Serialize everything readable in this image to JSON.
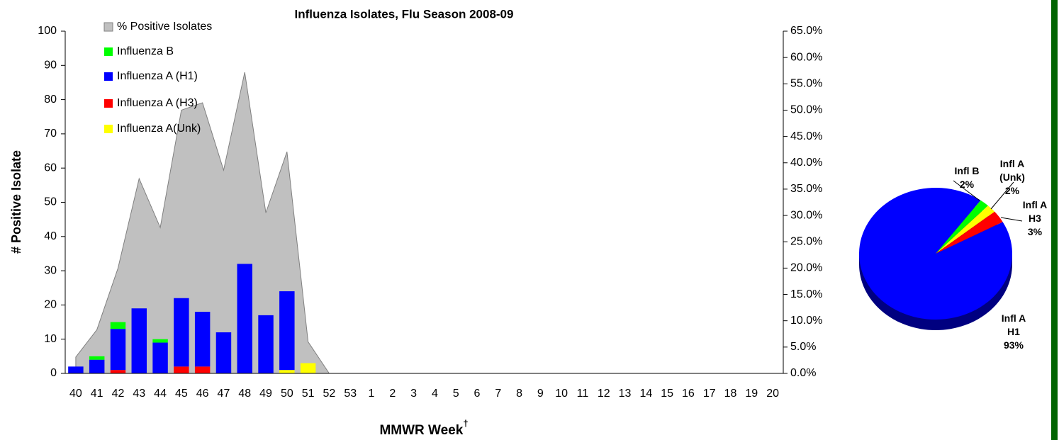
{
  "chart_data": [
    {
      "type": "bar",
      "title": "Influenza Isolates, Flu Season 2008-09",
      "y_label": "# Positive Isolate",
      "x_label": "MMWR Week",
      "x_label_superscript": "†",
      "categories": [
        "40",
        "41",
        "42",
        "43",
        "44",
        "45",
        "46",
        "47",
        "48",
        "49",
        "50",
        "51",
        "52",
        "53",
        "1",
        "2",
        "3",
        "4",
        "5",
        "6",
        "7",
        "8",
        "9",
        "10",
        "11",
        "12",
        "13",
        "14",
        "15",
        "16",
        "17",
        "18",
        "19",
        "20"
      ],
      "ylim": [
        0,
        100
      ],
      "yticks": [
        0,
        10,
        20,
        30,
        40,
        50,
        60,
        70,
        80,
        90,
        100
      ],
      "y2lim": [
        0,
        65
      ],
      "y2ticks": [
        {
          "value": 0,
          "label": "0.0%"
        },
        {
          "value": 5,
          "label": "5.0%"
        },
        {
          "value": 10,
          "label": "10.0%"
        },
        {
          "value": 15,
          "label": "15.0%"
        },
        {
          "value": 20,
          "label": "20.0%"
        },
        {
          "value": 25,
          "label": "25.0%"
        },
        {
          "value": 30,
          "label": "30.0%"
        },
        {
          "value": 35,
          "label": "35.0%"
        },
        {
          "value": 40,
          "label": "40.0%"
        },
        {
          "value": 45,
          "label": "45.0%"
        },
        {
          "value": 50,
          "label": "50.0%"
        },
        {
          "value": 55,
          "label": "55.0%"
        },
        {
          "value": 60,
          "label": "60.0%"
        },
        {
          "value": 65,
          "label": "65.0%"
        }
      ],
      "stacked": true,
      "series": [
        {
          "name": "% Positive Isolates",
          "type": "area",
          "axis": "y2",
          "color": "#c0c0c0",
          "values": [
            3.1,
            8.3,
            20,
            37,
            27.7,
            50,
            51.4,
            38.6,
            57.2,
            30.5,
            42.1,
            6,
            0,
            0,
            0,
            0,
            0,
            0,
            0,
            0,
            0,
            0,
            0,
            0,
            0,
            0,
            0,
            0,
            0,
            0,
            0,
            0,
            0,
            0
          ]
        },
        {
          "name": "Influenza B",
          "color": "#00ff00",
          "values": [
            0,
            1,
            2,
            0,
            1,
            0,
            0,
            0,
            0,
            0,
            0,
            0,
            0,
            0,
            0,
            0,
            0,
            0,
            0,
            0,
            0,
            0,
            0,
            0,
            0,
            0,
            0,
            0,
            0,
            0,
            0,
            0,
            0,
            0
          ]
        },
        {
          "name": "Influenza A (H1)",
          "color": "#0000ff",
          "values": [
            2,
            4,
            12,
            19,
            9,
            20,
            16,
            12,
            32,
            17,
            23,
            0,
            0,
            0,
            0,
            0,
            0,
            0,
            0,
            0,
            0,
            0,
            0,
            0,
            0,
            0,
            0,
            0,
            0,
            0,
            0,
            0,
            0,
            0
          ]
        },
        {
          "name": "Influenza A (H3)",
          "color": "#ff0000",
          "values": [
            0,
            0,
            1,
            0,
            0,
            2,
            2,
            0,
            0,
            0,
            0,
            0,
            0,
            0,
            0,
            0,
            0,
            0,
            0,
            0,
            0,
            0,
            0,
            0,
            0,
            0,
            0,
            0,
            0,
            0,
            0,
            0,
            0,
            0
          ]
        },
        {
          "name": "Influenza A(Unk)",
          "color": "#ffff00",
          "values": [
            0,
            0,
            0,
            0,
            0,
            0,
            0,
            0,
            0,
            0,
            1,
            3,
            0,
            0,
            0,
            0,
            0,
            0,
            0,
            0,
            0,
            0,
            0,
            0,
            0,
            0,
            0,
            0,
            0,
            0,
            0,
            0,
            0,
            0
          ]
        }
      ]
    },
    {
      "type": "pie",
      "categories": [
        "Infl A H1",
        "Infl B",
        "Infl A (Unk)",
        "Infl A H3"
      ],
      "values": [
        93,
        2,
        2,
        3
      ],
      "value_labels": [
        "93%",
        "2%",
        "2%",
        "3%"
      ],
      "colors": [
        "#0000ff",
        "#00ff00",
        "#ffff00",
        "#ff0000"
      ]
    }
  ]
}
